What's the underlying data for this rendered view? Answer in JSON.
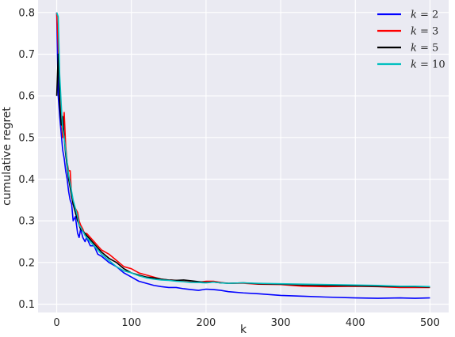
{
  "chart_data": {
    "type": "line",
    "xlabel": "k",
    "ylabel": "cumulative regret",
    "xlim": [
      -25,
      525
    ],
    "ylim": [
      0.08,
      0.83
    ],
    "xticks": [
      0,
      100,
      200,
      300,
      400,
      500
    ],
    "yticks": [
      0.1,
      0.2,
      0.3,
      0.4,
      0.5,
      0.6,
      0.7,
      0.8
    ],
    "grid": true,
    "legend_placement": "top-right",
    "series": [
      {
        "name": "k = 2",
        "legend_var": "k",
        "legend_val": "2",
        "color": "#0000ff",
        "x": [
          0,
          2,
          4,
          6,
          8,
          10,
          12,
          14,
          16,
          18,
          20,
          22,
          25,
          28,
          30,
          32,
          35,
          38,
          40,
          45,
          50,
          55,
          60,
          70,
          80,
          90,
          100,
          110,
          120,
          130,
          140,
          150,
          160,
          170,
          180,
          190,
          200,
          210,
          220,
          230,
          250,
          270,
          300,
          330,
          360,
          400,
          430,
          460,
          480,
          500
        ],
        "y": [
          0.8,
          0.6,
          0.55,
          0.51,
          0.47,
          0.45,
          0.42,
          0.4,
          0.37,
          0.35,
          0.34,
          0.3,
          0.31,
          0.27,
          0.26,
          0.28,
          0.26,
          0.25,
          0.26,
          0.24,
          0.24,
          0.22,
          0.215,
          0.2,
          0.19,
          0.175,
          0.165,
          0.155,
          0.15,
          0.145,
          0.142,
          0.14,
          0.14,
          0.137,
          0.135,
          0.133,
          0.136,
          0.135,
          0.133,
          0.13,
          0.127,
          0.125,
          0.121,
          0.119,
          0.117,
          0.115,
          0.114,
          0.115,
          0.114,
          0.115
        ]
      },
      {
        "name": "k = 3",
        "legend_var": "k",
        "legend_val": "3",
        "color": "#ff0000",
        "x": [
          0,
          2,
          4,
          6,
          8,
          10,
          12,
          14,
          16,
          18,
          20,
          22,
          25,
          28,
          30,
          32,
          35,
          38,
          40,
          45,
          50,
          55,
          60,
          70,
          80,
          90,
          100,
          110,
          120,
          130,
          140,
          150,
          160,
          170,
          180,
          190,
          200,
          210,
          220,
          230,
          250,
          270,
          300,
          330,
          360,
          400,
          430,
          460,
          480,
          500
        ],
        "y": [
          0.8,
          0.72,
          0.62,
          0.55,
          0.5,
          0.56,
          0.48,
          0.44,
          0.42,
          0.42,
          0.36,
          0.34,
          0.33,
          0.32,
          0.3,
          0.29,
          0.28,
          0.265,
          0.27,
          0.26,
          0.25,
          0.24,
          0.23,
          0.22,
          0.205,
          0.19,
          0.185,
          0.175,
          0.17,
          0.165,
          0.16,
          0.158,
          0.157,
          0.155,
          0.153,
          0.152,
          0.155,
          0.155,
          0.152,
          0.15,
          0.15,
          0.148,
          0.147,
          0.143,
          0.142,
          0.143,
          0.142,
          0.14,
          0.14,
          0.14
        ]
      },
      {
        "name": "k = 5",
        "legend_var": "k",
        "legend_val": "5",
        "color": "#000000",
        "x": [
          0,
          2,
          4,
          6,
          8,
          10,
          12,
          14,
          16,
          18,
          20,
          22,
          25,
          28,
          30,
          32,
          35,
          38,
          40,
          45,
          50,
          55,
          60,
          70,
          80,
          90,
          100,
          110,
          120,
          130,
          140,
          150,
          160,
          170,
          180,
          190,
          200,
          210,
          220,
          230,
          250,
          270,
          300,
          330,
          360,
          400,
          430,
          460,
          480,
          500
        ],
        "y": [
          0.6,
          0.7,
          0.58,
          0.53,
          0.55,
          0.5,
          0.46,
          0.43,
          0.4,
          0.38,
          0.36,
          0.34,
          0.32,
          0.3,
          0.29,
          0.28,
          0.275,
          0.27,
          0.265,
          0.255,
          0.245,
          0.235,
          0.225,
          0.21,
          0.2,
          0.185,
          0.175,
          0.17,
          0.165,
          0.163,
          0.16,
          0.158,
          0.157,
          0.158,
          0.156,
          0.154,
          0.152,
          0.153,
          0.151,
          0.15,
          0.151,
          0.149,
          0.148,
          0.146,
          0.145,
          0.144,
          0.143,
          0.142,
          0.142,
          0.141
        ]
      },
      {
        "name": "k = 10",
        "legend_var": "k",
        "legend_val": "10",
        "color": "#00bfbf",
        "x": [
          0,
          2,
          4,
          6,
          8,
          10,
          12,
          14,
          16,
          18,
          20,
          22,
          25,
          28,
          30,
          32,
          35,
          38,
          40,
          45,
          50,
          55,
          60,
          70,
          80,
          90,
          100,
          110,
          120,
          130,
          140,
          150,
          160,
          170,
          180,
          190,
          200,
          210,
          220,
          230,
          250,
          270,
          300,
          330,
          360,
          400,
          430,
          460,
          480,
          500
        ],
        "y": [
          0.8,
          0.79,
          0.65,
          0.58,
          0.52,
          0.5,
          0.47,
          0.44,
          0.41,
          0.39,
          0.37,
          0.35,
          0.33,
          0.31,
          0.29,
          0.285,
          0.275,
          0.265,
          0.26,
          0.25,
          0.24,
          0.23,
          0.22,
          0.205,
          0.19,
          0.18,
          0.175,
          0.168,
          0.163,
          0.16,
          0.158,
          0.157,
          0.155,
          0.154,
          0.152,
          0.152,
          0.151,
          0.153,
          0.151,
          0.15,
          0.151,
          0.15,
          0.149,
          0.148,
          0.147,
          0.146,
          0.145,
          0.143,
          0.143,
          0.142
        ]
      }
    ]
  }
}
